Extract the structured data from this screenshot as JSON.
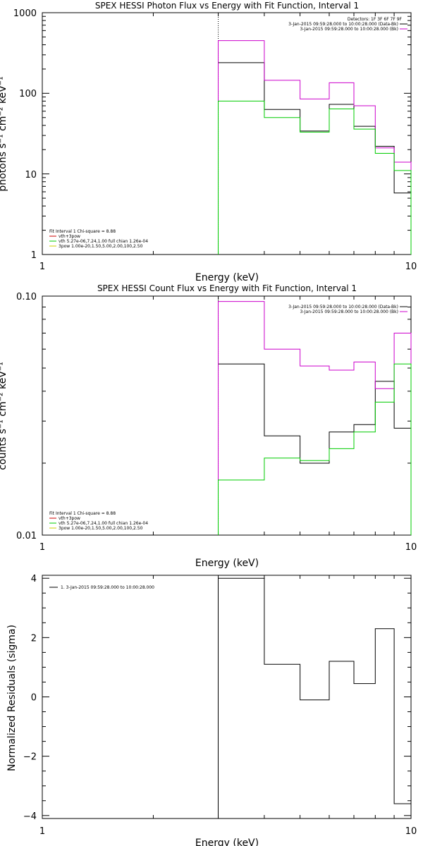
{
  "panels": [
    {
      "title": "SPEX HESSI Photon Flux vs Energy with Fit Function, Interval 1",
      "xlabel": "Energy (keV)",
      "ylabel": "photons s⁻¹ cm⁻² keV⁻¹",
      "x_ticks": [
        "1",
        "10"
      ],
      "y_ticks": [
        "1",
        "10",
        "100",
        "1000"
      ],
      "legend_right": [
        "Detectors: 1F 3F 6F 7F 9F",
        "3-Jan-2015 09:59:28.000 to 10:00:28.000 (Data-Bk)",
        "3-Jan-2015 09:59:28.000 to 10:00:28.000 (Bk)"
      ],
      "legend_left": [
        "Fit Interval 1   Chi-square = 8.88",
        "vth+3pow",
        "vth 5.27e-06,7.24,1.00  full chian 1.26e-04",
        "3pow 1.00e-20,1.50,5.00,2.00,100,2.50"
      ]
    },
    {
      "title": "SPEX HESSI Count Flux vs Energy with Fit Function, Interval 1",
      "xlabel": "Energy (keV)",
      "ylabel": "counts s⁻¹ cm⁻² keV⁻¹",
      "x_ticks": [
        "1",
        "10"
      ],
      "y_ticks": [
        "0.01",
        "0.10"
      ],
      "legend_right": [
        "3-Jan-2015 09:59:28.000 to 10:00:28.000 (Data-Bk)",
        "3-Jan-2015 09:59:28.000 to 10:00:28.000 (Bk)"
      ],
      "legend_left": [
        "Fit Interval 1   Chi-square = 8.88",
        "vth+3pow",
        "vth 5.27e-06,7.24,1.00  full chian 1.26e-04",
        "3pow 1.00e-20,1.50,5.00,2.00,100,2.50"
      ]
    },
    {
      "title": "",
      "xlabel": "Energy (keV)",
      "ylabel": "Normalized Residuals (sigma)",
      "x_ticks": [
        "1",
        "10"
      ],
      "y_ticks": [
        "-4",
        "-2",
        "0",
        "2",
        "4"
      ],
      "legend_right": [],
      "legend_left": [
        "1.  3-Jan-2015 09:59:28.000 to 10:00:28.000"
      ]
    }
  ],
  "colors": {
    "data": "#000000",
    "background": "#cc00cc",
    "vth": "#00cc00",
    "pow": "#cc0000",
    "fit": "#cc0000"
  },
  "chart_data": [
    {
      "type": "line",
      "subtype": "histogram-step",
      "title": "SPEX HESSI Photon Flux vs Energy with Fit Function, Interval 1",
      "xlabel": "Energy (keV)",
      "ylabel": "photons s⁻¹ cm⁻² keV⁻¹",
      "xscale": "log",
      "yscale": "log",
      "xlim": [
        1,
        10
      ],
      "ylim": [
        1,
        1000
      ],
      "bin_edges": [
        3,
        4,
        5,
        6,
        7,
        8,
        9,
        10
      ],
      "fit_start": 3,
      "series": [
        {
          "name": "Data-Bk",
          "color": "#000000",
          "values": [
            240,
            63,
            34,
            73,
            39,
            22,
            5.8
          ]
        },
        {
          "name": "Bk",
          "color": "#cc00cc",
          "values": [
            450,
            145,
            85,
            135,
            70,
            21,
            14
          ]
        },
        {
          "name": "vth 5.27e-06,7.24,1.00  full chian 1.26e-04",
          "color": "#00cc00",
          "values": [
            80,
            50,
            33,
            64,
            36,
            18,
            11
          ]
        }
      ]
    },
    {
      "type": "line",
      "subtype": "histogram-step",
      "title": "SPEX HESSI Count Flux vs Energy with Fit Function, Interval 1",
      "xlabel": "Energy (keV)",
      "ylabel": "counts s⁻¹ cm⁻² keV⁻¹",
      "xscale": "log",
      "yscale": "log",
      "xlim": [
        1,
        10
      ],
      "ylim": [
        0.01,
        0.1
      ],
      "bin_edges": [
        3,
        4,
        5,
        6,
        7,
        8,
        9,
        10
      ],
      "fit_start": 3,
      "series": [
        {
          "name": "Data-Bk",
          "color": "#000000",
          "values": [
            0.052,
            0.026,
            0.02,
            0.027,
            0.029,
            0.044,
            0.028
          ]
        },
        {
          "name": "Bk",
          "color": "#cc00cc",
          "values": [
            0.095,
            0.06,
            0.051,
            0.049,
            0.053,
            0.041,
            0.07
          ]
        },
        {
          "name": "vth 5.27e-06,7.24,1.00  full chian 1.26e-04",
          "color": "#00cc00",
          "values": [
            0.017,
            0.021,
            0.0205,
            0.023,
            0.027,
            0.036,
            0.052
          ]
        }
      ]
    },
    {
      "type": "line",
      "subtype": "histogram-step",
      "title": "",
      "xlabel": "Energy (keV)",
      "ylabel": "Normalized Residuals (sigma)",
      "xscale": "log",
      "yscale": "linear",
      "xlim": [
        1,
        10
      ],
      "ylim": [
        -4.1,
        4.1
      ],
      "bin_edges": [
        3,
        4,
        5,
        6,
        7,
        8,
        9,
        10
      ],
      "series": [
        {
          "name": "1.  3-Jan-2015 09:59:28.000 to 10:00:28.000",
          "color": "#000000",
          "values": [
            4.0,
            1.1,
            -0.1,
            1.2,
            0.45,
            2.3,
            -3.6
          ]
        }
      ]
    }
  ]
}
